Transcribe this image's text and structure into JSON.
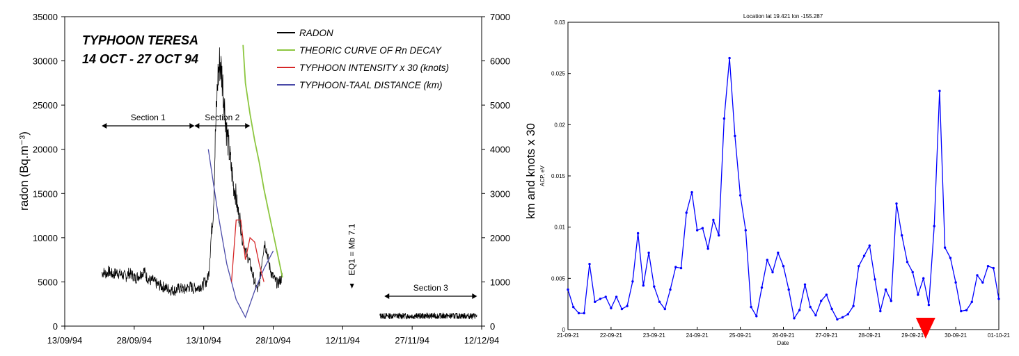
{
  "charts": [
    {
      "type": "line",
      "left_axis_label": "radon (Bq.m⁻³)",
      "right_axis_label": "km and knots x 30",
      "title_lines": [
        "TYPHOON TERESA",
        "14 OCT - 27 OCT 94"
      ],
      "x_ticks": [
        "13/09/94",
        "28/09/94",
        "13/10/94",
        "28/10/94",
        "12/11/94",
        "27/11/94",
        "12/12/94"
      ],
      "y_left_ticks": [
        "0",
        "5000",
        "10000",
        "15000",
        "20000",
        "25000",
        "30000",
        "35000"
      ],
      "y_right_ticks": [
        "0",
        "1000",
        "2000",
        "3000",
        "4000",
        "5000",
        "6000",
        "7000"
      ],
      "ylim_left": [
        0,
        35000
      ],
      "ylim_right": [
        0,
        7000
      ],
      "xlim_days": [
        0,
        90
      ],
      "legend": [
        {
          "label": "RADON",
          "color": "#000000"
        },
        {
          "label": "THEORIC CURVE OF Rn DECAY",
          "color": "#8cc63f"
        },
        {
          "label": "TYPHOON INTENSITY  x 30 (knots)",
          "color": "#d62728"
        },
        {
          "label": "TYPHOON-TAAL DISTANCE (km)",
          "color": "#4a4aa8"
        }
      ],
      "sections": [
        {
          "label": "Section 1",
          "from_day": 8,
          "to_day": 28
        },
        {
          "label": "Section 2",
          "from_day": 28,
          "to_day": 40
        },
        {
          "label": "Section 3",
          "from_day": 69,
          "to_day": 89
        }
      ],
      "annotation": {
        "label": "EQ1 = Mb 7.1",
        "day": 62,
        "value": 4800
      },
      "radon_section1": {
        "from_day": 8,
        "to_day": 47,
        "values": [
          6000,
          6100,
          5900,
          6200,
          6000,
          5800,
          6000,
          6100,
          5900,
          5800,
          5700,
          5600,
          6000,
          5900,
          5700,
          5400,
          5600,
          5800,
          6000,
          6300,
          5600,
          5300,
          5100,
          5200,
          4900,
          4700,
          4600,
          4500,
          4400,
          4300,
          4200,
          4100,
          4100,
          4000,
          4200,
          4300,
          4200,
          4100,
          4300,
          4400,
          4500,
          4200,
          4400,
          4300,
          4600,
          4400,
          5000,
          5000,
          6000,
          10000,
          13000,
          22000,
          28000,
          30000,
          28000,
          25000,
          22000,
          20000,
          18000,
          16000,
          15000,
          13000,
          12000,
          10000,
          9000,
          8000,
          7500,
          6500,
          5500,
          4500,
          4000,
          5500,
          8000,
          9500,
          8500,
          7000,
          6000,
          5500,
          5000,
          4800,
          5200,
          5600
        ]
      },
      "radon_section3": {
        "from_day": 68,
        "to_day": 89,
        "base": 1150
      },
      "decay_curve": {
        "days": [
          38.5,
          39,
          40,
          41,
          42,
          43,
          44,
          45,
          46,
          47
        ],
        "values": [
          31800,
          27500,
          24000,
          21000,
          18500,
          15500,
          13000,
          10500,
          8000,
          5500
        ]
      },
      "typhoon_intensity": {
        "days": [
          36,
          37,
          38,
          39,
          40,
          41,
          42,
          43
        ],
        "values": [
          5000,
          12000,
          12000,
          7500,
          10000,
          9500,
          7000,
          5000
        ]
      },
      "typhoon_distance": {
        "days": [
          31,
          33,
          35,
          37,
          39,
          41,
          43,
          45
        ],
        "values": [
          20000,
          13000,
          7000,
          3000,
          1000,
          4000,
          6500,
          8500
        ]
      }
    },
    {
      "type": "line",
      "title": "Location lat 19.421 lon -155.287",
      "xlabel": "Date",
      "ylabel": "ACP, eV",
      "ylim": [
        0,
        0.03
      ],
      "y_ticks": [
        "0",
        "0.005",
        "0.01",
        "0.015",
        "0.02",
        "0.025",
        "0.03"
      ],
      "x_ticks": [
        "21-09-21",
        "22-09-21",
        "23-09-21",
        "24-09-21",
        "25-09-21",
        "26-09-21",
        "27-09-21",
        "28-09-21",
        "29-09-21",
        "30-09-21",
        "01-10-21"
      ],
      "series": [
        {
          "name": "ACP",
          "color": "#0000ff",
          "values": [
            0.0039,
            0.0022,
            0.0016,
            0.0016,
            0.0064,
            0.0027,
            0.003,
            0.0032,
            0.0021,
            0.0032,
            0.002,
            0.0023,
            0.0047,
            0.0094,
            0.0043,
            0.0075,
            0.0042,
            0.0027,
            0.002,
            0.0039,
            0.0061,
            0.006,
            0.0114,
            0.0134,
            0.0097,
            0.0099,
            0.0079,
            0.0107,
            0.0092,
            0.0206,
            0.0265,
            0.0189,
            0.0131,
            0.0097,
            0.0022,
            0.0013,
            0.0041,
            0.0068,
            0.0056,
            0.0075,
            0.0062,
            0.0039,
            0.0011,
            0.0019,
            0.0044,
            0.0022,
            0.0014,
            0.0028,
            0.0034,
            0.002,
            0.001,
            0.0012,
            0.0015,
            0.0023,
            0.0062,
            0.0072,
            0.0082,
            0.0049,
            0.0018,
            0.0039,
            0.0028,
            0.0123,
            0.0092,
            0.0066,
            0.0056,
            0.0034,
            0.005,
            0.0024,
            0.0101,
            0.0233,
            0.008,
            0.007,
            0.0046,
            0.0018,
            0.0019,
            0.0027,
            0.0053,
            0.0046,
            0.0062,
            0.006,
            0.003
          ]
        }
      ],
      "marker": {
        "shape": "triangle-down",
        "color": "#ff0000",
        "date_index": 8.3
      }
    }
  ]
}
